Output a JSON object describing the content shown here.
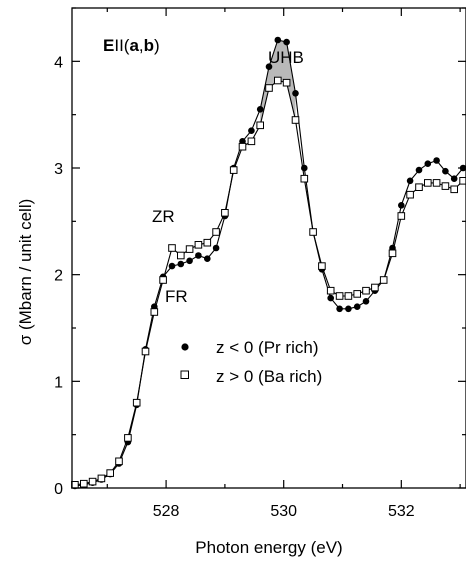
{
  "chart_data": {
    "type": "line",
    "xlabel": "Photon energy (eV)",
    "ylabel": "σ (Mbarn / unit cell)",
    "xlim": [
      526.4,
      533.1
    ],
    "ylim": [
      0,
      4.5
    ],
    "x_ticks": [
      528,
      530,
      532
    ],
    "x_tick_labels": [
      "528",
      "530",
      "532"
    ],
    "y_ticks": [
      0,
      1,
      2,
      3,
      4
    ],
    "y_tick_labels": [
      "0",
      "1",
      "2",
      "3",
      "4"
    ],
    "grid": false,
    "legend_placement": "center",
    "shaded_region_between_series": true,
    "annotations": {
      "panel": {
        "bold_e": "E",
        "par": "II(",
        "bold_a": "a",
        "comma": ",",
        "bold_b": "b",
        "close": ")"
      },
      "uhb": "UHB",
      "zr": "ZR",
      "fr": "FR"
    },
    "series": [
      {
        "name": "z < 0 (Pr rich)",
        "marker": "filled-circle",
        "color": "#000000",
        "x": [
          526.45,
          526.6,
          526.75,
          526.9,
          527.05,
          527.2,
          527.35,
          527.5,
          527.65,
          527.8,
          527.95,
          528.1,
          528.25,
          528.4,
          528.55,
          528.7,
          528.85,
          529.0,
          529.15,
          529.3,
          529.45,
          529.6,
          529.75,
          529.9,
          530.05,
          530.2,
          530.35,
          530.5,
          530.65,
          530.8,
          530.95,
          531.1,
          531.25,
          531.4,
          531.55,
          531.7,
          531.85,
          532.0,
          532.15,
          532.3,
          532.45,
          532.6,
          532.75,
          532.9,
          533.05
        ],
        "y": [
          0.02,
          0.03,
          0.05,
          0.08,
          0.13,
          0.23,
          0.43,
          0.78,
          1.3,
          1.7,
          1.98,
          2.08,
          2.1,
          2.13,
          2.18,
          2.15,
          2.25,
          2.55,
          3.0,
          3.25,
          3.35,
          3.55,
          3.95,
          4.2,
          4.18,
          3.7,
          3.0,
          2.4,
          2.05,
          1.78,
          1.68,
          1.68,
          1.7,
          1.75,
          1.85,
          1.95,
          2.25,
          2.65,
          2.88,
          2.98,
          3.04,
          3.07,
          2.97,
          2.9,
          3.0
        ]
      },
      {
        "name": "z > 0 (Ba rich)",
        "marker": "open-square",
        "color": "#000000",
        "x": [
          526.45,
          526.6,
          526.75,
          526.9,
          527.05,
          527.2,
          527.35,
          527.5,
          527.65,
          527.8,
          527.95,
          528.1,
          528.25,
          528.4,
          528.55,
          528.7,
          528.85,
          529.0,
          529.15,
          529.3,
          529.45,
          529.6,
          529.75,
          529.9,
          530.05,
          530.2,
          530.35,
          530.5,
          530.65,
          530.8,
          530.95,
          531.1,
          531.25,
          531.4,
          531.55,
          531.7,
          531.85,
          532.0,
          532.15,
          532.3,
          532.45,
          532.6,
          532.75,
          532.9,
          533.05
        ],
        "y": [
          0.03,
          0.04,
          0.06,
          0.09,
          0.14,
          0.25,
          0.47,
          0.8,
          1.28,
          1.65,
          1.95,
          2.25,
          2.18,
          2.24,
          2.28,
          2.3,
          2.4,
          2.58,
          2.98,
          3.2,
          3.25,
          3.4,
          3.75,
          3.82,
          3.8,
          3.45,
          2.9,
          2.4,
          2.08,
          1.85,
          1.8,
          1.8,
          1.82,
          1.85,
          1.88,
          1.95,
          2.2,
          2.55,
          2.75,
          2.82,
          2.86,
          2.86,
          2.83,
          2.8,
          2.88
        ]
      }
    ]
  }
}
